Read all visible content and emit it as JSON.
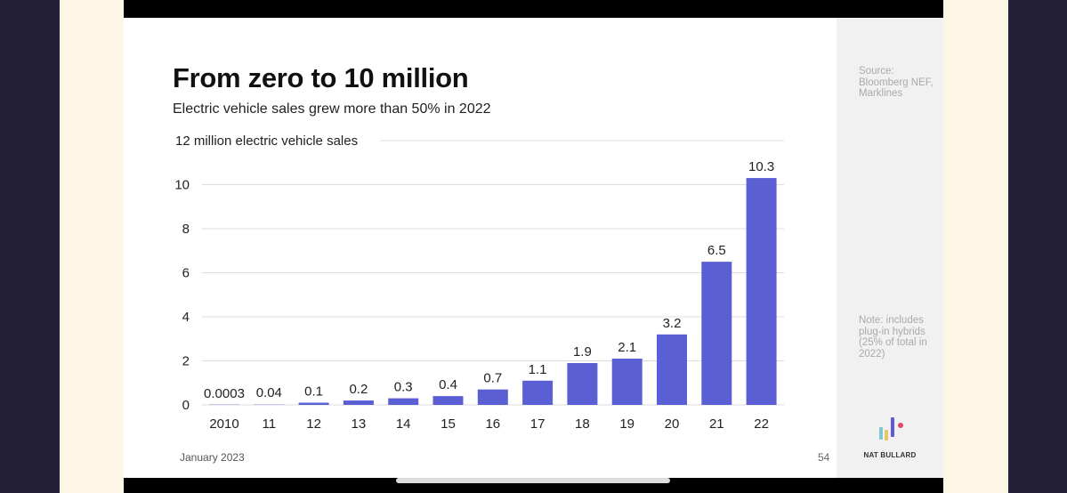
{
  "slide": {
    "title": "From zero to 10 million",
    "subtitle": "Electric vehicle sales grew more than 50% in 2022",
    "footer_date": "January 2023",
    "page_number": "54",
    "source": "Source: Bloomberg NEF, Marklines",
    "note": "Note: includes plug-in hybrids (25% of total in 2022)",
    "brand": "NAT BULLARD",
    "logo_colors": [
      "#7ec8d4",
      "#e9c46a",
      "#5b5bd6",
      "#e2466b"
    ]
  },
  "colors": {
    "bar": "#5b5fd4",
    "grid": "#dcdcdc",
    "text": "#222222"
  },
  "chart_data": {
    "type": "bar",
    "ylabel": "12 million electric vehicle sales",
    "ylim": [
      0,
      12
    ],
    "yticks": [
      0,
      2,
      4,
      6,
      8,
      10
    ],
    "grid": true,
    "categories": [
      "2010",
      "11",
      "12",
      "13",
      "14",
      "15",
      "16",
      "17",
      "18",
      "19",
      "20",
      "21",
      "22"
    ],
    "values": [
      0.0003,
      0.04,
      0.1,
      0.2,
      0.3,
      0.4,
      0.7,
      1.1,
      1.9,
      2.1,
      3.2,
      6.5,
      10.3
    ],
    "labels": [
      "0.0003",
      "0.04",
      "0.1",
      "0.2",
      "0.3",
      "0.4",
      "0.7",
      "1.1",
      "1.9",
      "2.1",
      "3.2",
      "6.5",
      "10.3"
    ]
  }
}
